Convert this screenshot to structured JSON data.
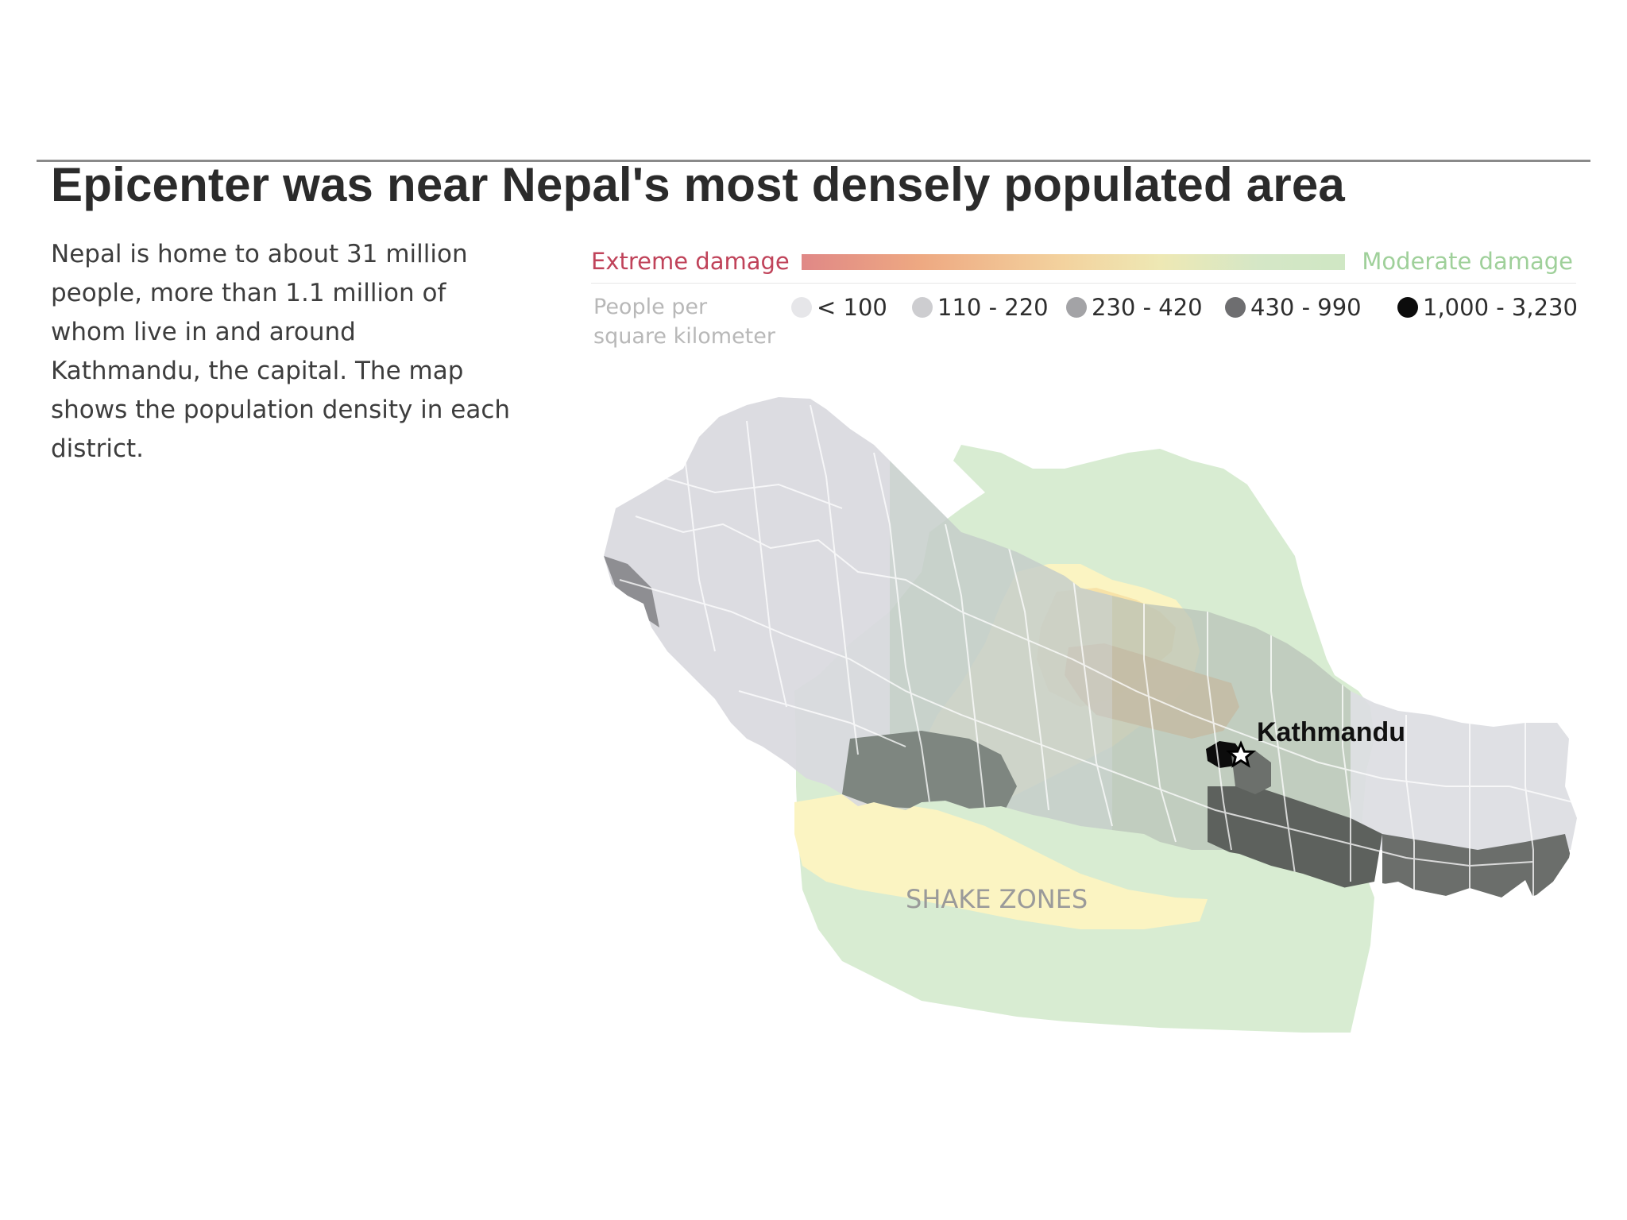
{
  "header": {
    "title": "Epicenter was near Nepal's most densely populated area"
  },
  "intro": {
    "text": "Nepal is home to about 31 million people, more than 1.1 million of whom live in and around Kathmandu, the capital. The map shows the population density in each district."
  },
  "legend": {
    "damage_scale": {
      "left_label": "Extreme damage",
      "right_label": "Moderate damage",
      "left_color": "#c0435a",
      "right_color": "#9fd09a"
    },
    "density": {
      "label": "People per square kilometer",
      "bins": [
        {
          "label": "< 100",
          "color": "#e6e6e9"
        },
        {
          "label": "110 - 220",
          "color": "#cdcdd0"
        },
        {
          "label": "230 - 420",
          "color": "#a3a3a6"
        },
        {
          "label": "430 - 990",
          "color": "#6e6e70"
        },
        {
          "label": "1,000 - 3,230",
          "color": "#0c0c0c"
        }
      ]
    }
  },
  "map": {
    "shake_zones_label": "SHAKE ZONES",
    "capital_label": "Kathmandu",
    "epicenter_icon": "star-icon",
    "colors": {
      "moderate_zone": "#d8ecd2",
      "middle_zone": "#fbf4c2",
      "strong_zone": "#f7e2a8",
      "extreme_zone": "#e3a46a"
    }
  }
}
